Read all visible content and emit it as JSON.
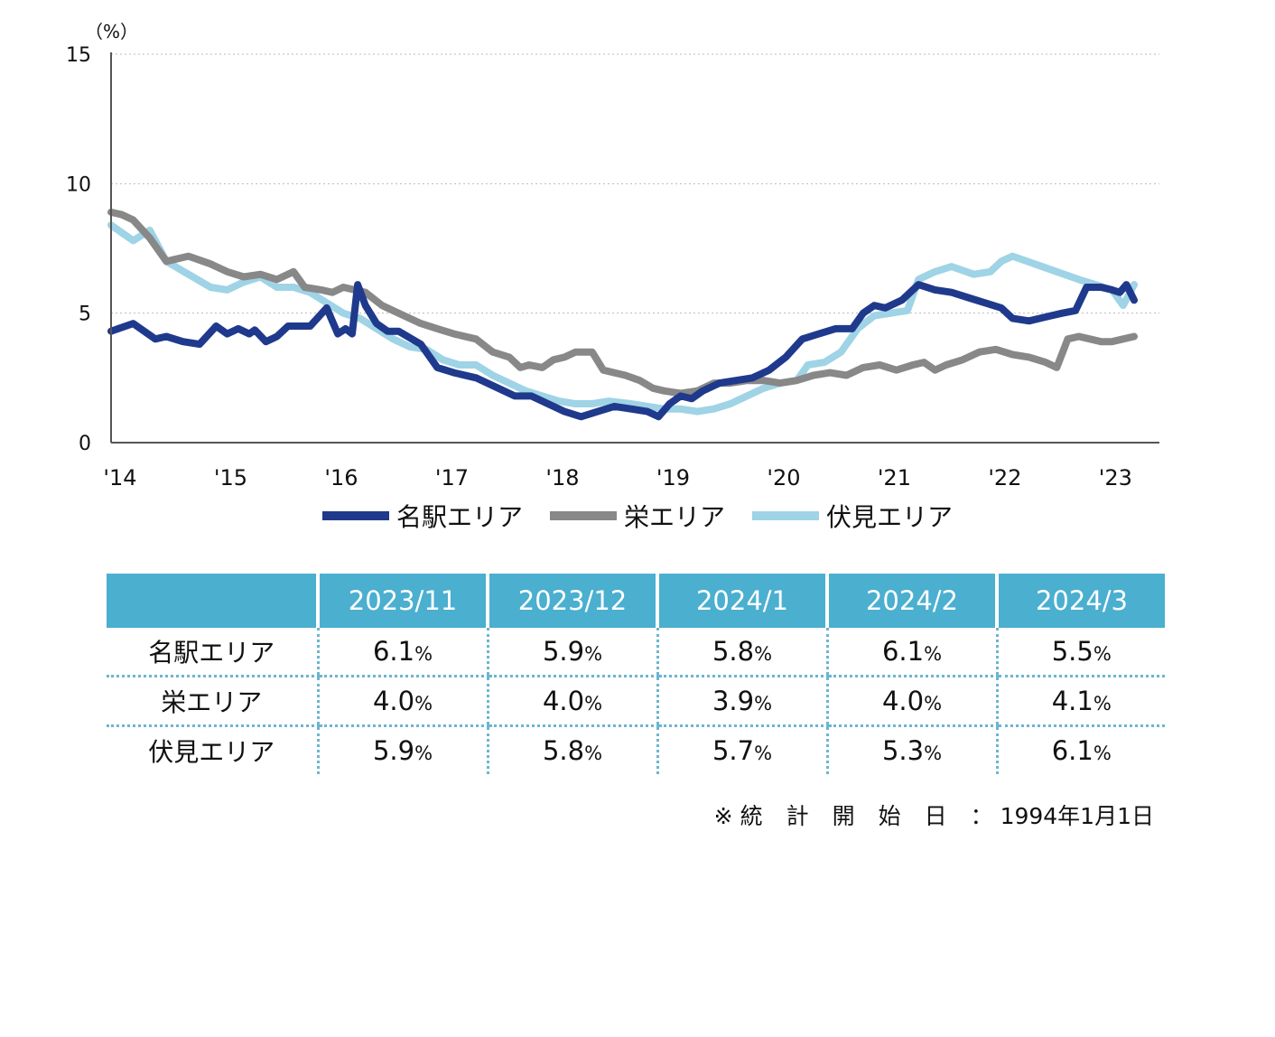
{
  "chart_data": {
    "type": "line",
    "ylabel": "（%）",
    "ylim": [
      0,
      15
    ],
    "yticks": [
      0,
      5,
      10,
      15
    ],
    "xlim": [
      2014.0,
      2023.25
    ],
    "xtick_values": [
      2014,
      2015,
      2016,
      2017,
      2018,
      2019,
      2020,
      2021,
      2022,
      2023
    ],
    "xtick_labels": [
      "'14",
      "'15",
      "'16",
      "'17",
      "'18",
      "'19",
      "'20",
      "'21",
      "'22",
      "'23"
    ],
    "grid": "horizontal-dotted",
    "legend_position": "bottom",
    "series": [
      {
        "name": "名駅エリア",
        "color": "#1f3a8c",
        "points": [
          [
            2014.0,
            4.3
          ],
          [
            2014.2,
            4.6
          ],
          [
            2014.4,
            4.0
          ],
          [
            2014.5,
            4.1
          ],
          [
            2014.65,
            3.9
          ],
          [
            2014.8,
            3.8
          ],
          [
            2014.95,
            4.5
          ],
          [
            2015.05,
            4.2
          ],
          [
            2015.15,
            4.4
          ],
          [
            2015.25,
            4.2
          ],
          [
            2015.3,
            4.35
          ],
          [
            2015.4,
            3.9
          ],
          [
            2015.5,
            4.1
          ],
          [
            2015.6,
            4.5
          ],
          [
            2015.8,
            4.5
          ],
          [
            2015.95,
            5.2
          ],
          [
            2016.05,
            4.2
          ],
          [
            2016.12,
            4.4
          ],
          [
            2016.18,
            4.2
          ],
          [
            2016.23,
            6.1
          ],
          [
            2016.3,
            5.3
          ],
          [
            2016.4,
            4.6
          ],
          [
            2016.5,
            4.3
          ],
          [
            2016.6,
            4.3
          ],
          [
            2016.8,
            3.8
          ],
          [
            2016.95,
            2.9
          ],
          [
            2017.1,
            2.7
          ],
          [
            2017.3,
            2.5
          ],
          [
            2017.5,
            2.1
          ],
          [
            2017.65,
            1.8
          ],
          [
            2017.8,
            1.8
          ],
          [
            2017.95,
            1.5
          ],
          [
            2018.1,
            1.2
          ],
          [
            2018.25,
            1.0
          ],
          [
            2018.4,
            1.2
          ],
          [
            2018.55,
            1.4
          ],
          [
            2018.7,
            1.3
          ],
          [
            2018.85,
            1.2
          ],
          [
            2018.95,
            1.0
          ],
          [
            2019.05,
            1.5
          ],
          [
            2019.15,
            1.8
          ],
          [
            2019.25,
            1.7
          ],
          [
            2019.35,
            2.0
          ],
          [
            2019.5,
            2.3
          ],
          [
            2019.65,
            2.4
          ],
          [
            2019.8,
            2.5
          ],
          [
            2019.95,
            2.8
          ],
          [
            2020.1,
            3.3
          ],
          [
            2020.25,
            4.0
          ],
          [
            2020.4,
            4.2
          ],
          [
            2020.55,
            4.4
          ],
          [
            2020.7,
            4.4
          ],
          [
            2020.8,
            5.0
          ],
          [
            2020.9,
            5.3
          ],
          [
            2021.0,
            5.2
          ],
          [
            2021.15,
            5.5
          ],
          [
            2021.3,
            6.1
          ],
          [
            2021.45,
            5.9
          ],
          [
            2021.6,
            5.8
          ],
          [
            2021.75,
            5.6
          ],
          [
            2021.9,
            5.4
          ],
          [
            2022.05,
            5.2
          ],
          [
            2022.15,
            4.8
          ],
          [
            2022.3,
            4.7
          ],
          [
            2022.4,
            4.8
          ],
          [
            2022.5,
            4.9
          ],
          [
            2022.6,
            5.0
          ],
          [
            2022.72,
            5.1
          ],
          [
            2022.82,
            6.0
          ],
          [
            2022.95,
            6.0
          ],
          [
            2023.05,
            5.9
          ],
          [
            2023.12,
            5.8
          ],
          [
            2023.18,
            6.1
          ],
          [
            2023.25,
            5.5
          ]
        ]
      },
      {
        "name": "栄エリア",
        "color": "#888888",
        "points": [
          [
            2014.0,
            8.9
          ],
          [
            2014.1,
            8.8
          ],
          [
            2014.2,
            8.6
          ],
          [
            2014.35,
            7.9
          ],
          [
            2014.5,
            7.0
          ],
          [
            2014.7,
            7.2
          ],
          [
            2014.9,
            6.9
          ],
          [
            2015.05,
            6.6
          ],
          [
            2015.2,
            6.4
          ],
          [
            2015.35,
            6.5
          ],
          [
            2015.5,
            6.3
          ],
          [
            2015.65,
            6.6
          ],
          [
            2015.75,
            6.0
          ],
          [
            2015.9,
            5.9
          ],
          [
            2016.0,
            5.8
          ],
          [
            2016.1,
            6.0
          ],
          [
            2016.3,
            5.8
          ],
          [
            2016.45,
            5.3
          ],
          [
            2016.6,
            5.0
          ],
          [
            2016.8,
            4.6
          ],
          [
            2016.95,
            4.4
          ],
          [
            2017.1,
            4.2
          ],
          [
            2017.3,
            4.0
          ],
          [
            2017.45,
            3.5
          ],
          [
            2017.6,
            3.3
          ],
          [
            2017.7,
            2.9
          ],
          [
            2017.78,
            3.0
          ],
          [
            2017.9,
            2.9
          ],
          [
            2018.0,
            3.2
          ],
          [
            2018.1,
            3.3
          ],
          [
            2018.2,
            3.5
          ],
          [
            2018.35,
            3.5
          ],
          [
            2018.45,
            2.8
          ],
          [
            2018.55,
            2.7
          ],
          [
            2018.65,
            2.6
          ],
          [
            2018.78,
            2.4
          ],
          [
            2018.9,
            2.1
          ],
          [
            2019.0,
            2.0
          ],
          [
            2019.15,
            1.9
          ],
          [
            2019.3,
            2.0
          ],
          [
            2019.45,
            2.3
          ],
          [
            2019.6,
            2.3
          ],
          [
            2019.75,
            2.4
          ],
          [
            2019.9,
            2.4
          ],
          [
            2020.05,
            2.3
          ],
          [
            2020.2,
            2.4
          ],
          [
            2020.35,
            2.6
          ],
          [
            2020.5,
            2.7
          ],
          [
            2020.65,
            2.6
          ],
          [
            2020.8,
            2.9
          ],
          [
            2020.95,
            3.0
          ],
          [
            2021.1,
            2.8
          ],
          [
            2021.25,
            3.0
          ],
          [
            2021.35,
            3.1
          ],
          [
            2021.45,
            2.8
          ],
          [
            2021.55,
            3.0
          ],
          [
            2021.7,
            3.2
          ],
          [
            2021.85,
            3.5
          ],
          [
            2022.0,
            3.6
          ],
          [
            2022.15,
            3.4
          ],
          [
            2022.3,
            3.3
          ],
          [
            2022.45,
            3.1
          ],
          [
            2022.55,
            2.9
          ],
          [
            2022.65,
            4.0
          ],
          [
            2022.75,
            4.1
          ],
          [
            2022.85,
            4.0
          ],
          [
            2022.95,
            3.9
          ],
          [
            2023.05,
            3.9
          ],
          [
            2023.15,
            4.0
          ],
          [
            2023.25,
            4.1
          ]
        ]
      },
      {
        "name": "伏見エリア",
        "color": "#9fd3e6",
        "points": [
          [
            2014.0,
            8.4
          ],
          [
            2014.1,
            8.1
          ],
          [
            2014.2,
            7.8
          ],
          [
            2014.35,
            8.2
          ],
          [
            2014.5,
            7.0
          ],
          [
            2014.7,
            6.5
          ],
          [
            2014.9,
            6.0
          ],
          [
            2015.05,
            5.9
          ],
          [
            2015.2,
            6.2
          ],
          [
            2015.35,
            6.4
          ],
          [
            2015.5,
            6.0
          ],
          [
            2015.65,
            6.0
          ],
          [
            2015.8,
            5.8
          ],
          [
            2015.95,
            5.4
          ],
          [
            2016.1,
            5.0
          ],
          [
            2016.25,
            4.8
          ],
          [
            2016.4,
            4.4
          ],
          [
            2016.55,
            4.0
          ],
          [
            2016.7,
            3.7
          ],
          [
            2016.85,
            3.6
          ],
          [
            2017.0,
            3.2
          ],
          [
            2017.15,
            3.0
          ],
          [
            2017.3,
            3.0
          ],
          [
            2017.45,
            2.6
          ],
          [
            2017.6,
            2.3
          ],
          [
            2017.75,
            2.0
          ],
          [
            2017.9,
            1.8
          ],
          [
            2018.05,
            1.6
          ],
          [
            2018.2,
            1.5
          ],
          [
            2018.35,
            1.5
          ],
          [
            2018.5,
            1.6
          ],
          [
            2018.7,
            1.5
          ],
          [
            2018.85,
            1.4
          ],
          [
            2019.0,
            1.3
          ],
          [
            2019.15,
            1.3
          ],
          [
            2019.3,
            1.2
          ],
          [
            2019.45,
            1.3
          ],
          [
            2019.6,
            1.5
          ],
          [
            2019.75,
            1.8
          ],
          [
            2019.9,
            2.1
          ],
          [
            2020.05,
            2.3
          ],
          [
            2020.2,
            2.4
          ],
          [
            2020.3,
            3.0
          ],
          [
            2020.45,
            3.1
          ],
          [
            2020.6,
            3.5
          ],
          [
            2020.75,
            4.4
          ],
          [
            2020.9,
            4.9
          ],
          [
            2021.05,
            5.0
          ],
          [
            2021.2,
            5.1
          ],
          [
            2021.3,
            6.3
          ],
          [
            2021.45,
            6.6
          ],
          [
            2021.6,
            6.8
          ],
          [
            2021.8,
            6.5
          ],
          [
            2021.95,
            6.6
          ],
          [
            2022.05,
            7.0
          ],
          [
            2022.15,
            7.2
          ],
          [
            2022.35,
            6.9
          ],
          [
            2022.55,
            6.6
          ],
          [
            2022.75,
            6.3
          ],
          [
            2022.9,
            6.1
          ],
          [
            2023.05,
            5.9
          ],
          [
            2023.15,
            5.3
          ],
          [
            2023.25,
            6.1
          ]
        ]
      }
    ]
  },
  "table": {
    "headers": [
      "",
      "2023/11",
      "2023/12",
      "2024/1",
      "2024/2",
      "2024/3"
    ],
    "unit": "%",
    "rows": [
      {
        "label": "名駅エリア",
        "values": [
          "6.1",
          "5.9",
          "5.8",
          "6.1",
          "5.5"
        ]
      },
      {
        "label": "栄エリア",
        "values": [
          "4.0",
          "4.0",
          "3.9",
          "4.0",
          "4.1"
        ]
      },
      {
        "label": "伏見エリア",
        "values": [
          "5.9",
          "5.8",
          "5.7",
          "5.3",
          "6.1"
        ]
      }
    ]
  },
  "note": {
    "prefix": "※",
    "label": "統計開始日",
    "colon": "：",
    "date": "1994年1月1日"
  }
}
